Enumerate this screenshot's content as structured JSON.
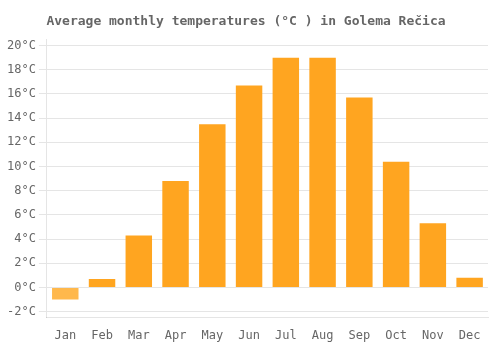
{
  "chart_data": {
    "type": "bar",
    "title": "Average monthly temperatures (°C ) in Golema Rečica",
    "categories": [
      "Jan",
      "Feb",
      "Mar",
      "Apr",
      "May",
      "Jun",
      "Jul",
      "Aug",
      "Sep",
      "Oct",
      "Nov",
      "Dec"
    ],
    "values": [
      -1.0,
      0.7,
      4.3,
      8.8,
      13.5,
      16.7,
      19.0,
      19.0,
      15.7,
      10.4,
      5.3,
      0.8
    ],
    "colors": [
      "#FFB84C",
      "#FFA520",
      "#FFA520",
      "#FFA520",
      "#FFA520",
      "#FFA520",
      "#FFA520",
      "#FFA520",
      "#FFA520",
      "#FFA520",
      "#FFA520",
      "#FFA520"
    ],
    "ylim": [
      -2.5,
      20.5
    ],
    "yticks": [
      {
        "value": -2,
        "label": "-2°C"
      },
      {
        "value": 0,
        "label": "0°C"
      },
      {
        "value": 2,
        "label": "2°C"
      },
      {
        "value": 4,
        "label": "4°C"
      },
      {
        "value": 6,
        "label": "6°C"
      },
      {
        "value": 8,
        "label": "8°C"
      },
      {
        "value": 10,
        "label": "10°C"
      },
      {
        "value": 12,
        "label": "12°C"
      },
      {
        "value": 14,
        "label": "14°C"
      },
      {
        "value": 16,
        "label": "16°C"
      },
      {
        "value": 18,
        "label": "18°C"
      },
      {
        "value": 20,
        "label": "20°C"
      }
    ],
    "grid": true
  }
}
